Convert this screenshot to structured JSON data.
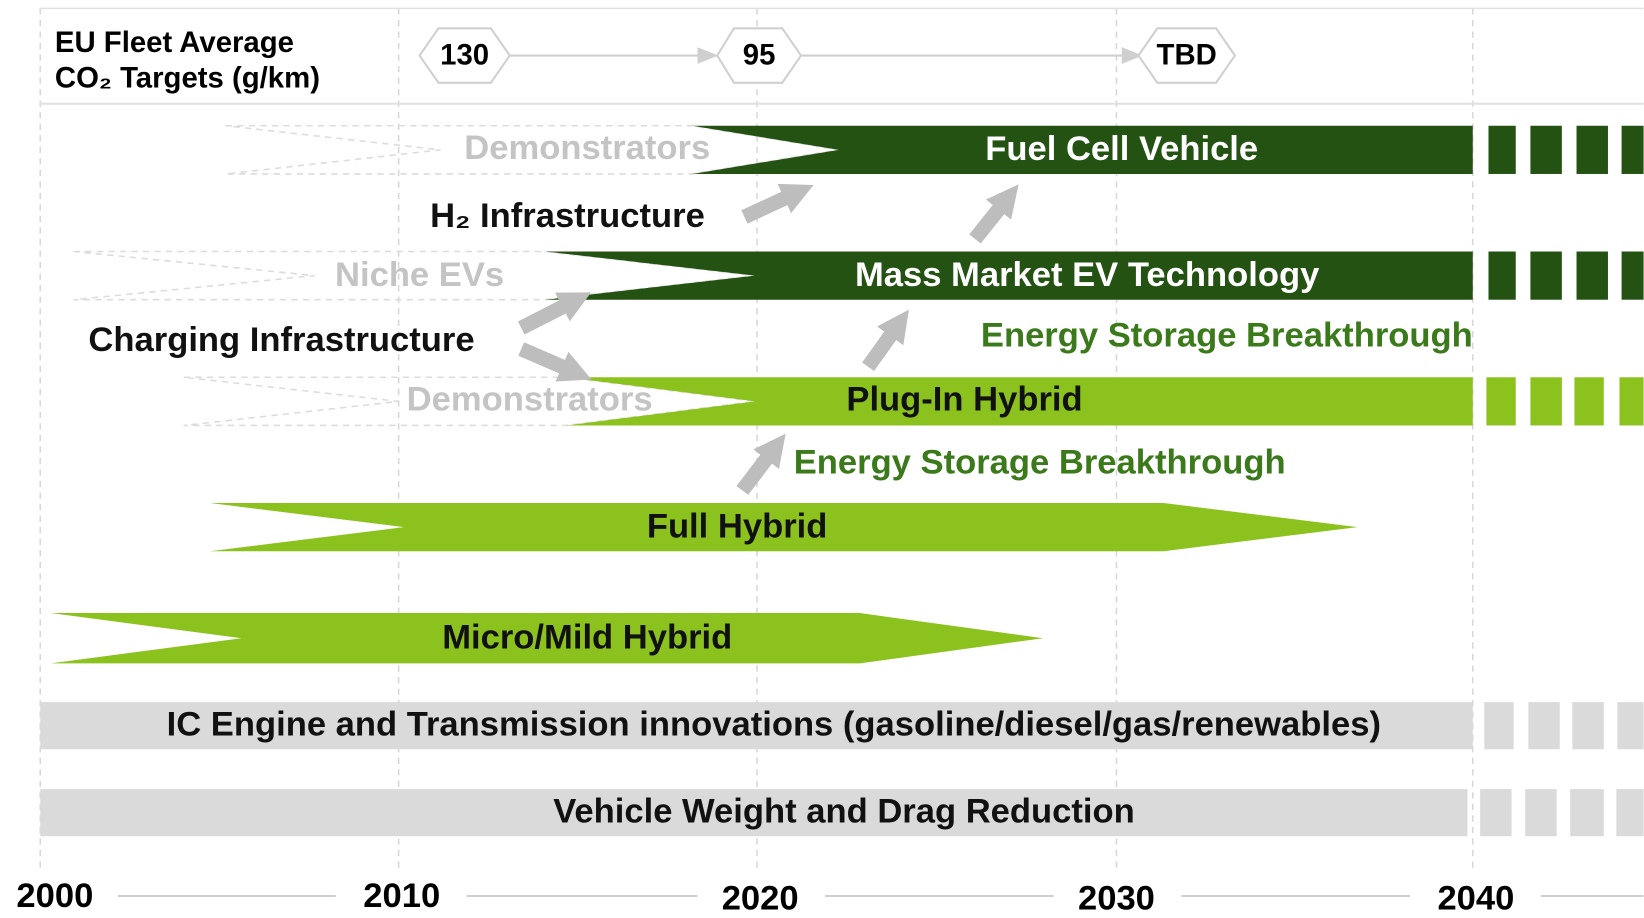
{
  "header": {
    "title_line1": "EU Fleet Average",
    "title_line2": "CO₂ Targets (g/km)",
    "targets": [
      "130",
      "95",
      "TBD"
    ]
  },
  "rows": {
    "fuel_cell": {
      "precursor": "Demonstrators",
      "label": "Fuel Cell Vehicle"
    },
    "h2_infrastructure": "H₂ Infrastructure",
    "mass_market_ev": {
      "precursor": "Niche EVs",
      "label": "Mass Market EV Technology"
    },
    "charging_infrastructure": "Charging Infrastructure",
    "energy_storage_1": "Energy Storage Breakthrough",
    "plug_in_hybrid": {
      "precursor": "Demonstrators",
      "label": "Plug-In Hybrid"
    },
    "energy_storage_2": "Energy Storage Breakthrough",
    "full_hybrid": "Full Hybrid",
    "micro_mild_hybrid": "Micro/Mild Hybrid",
    "ic_engine": "IC Engine and Transmission innovations (gasoline/diesel/gas/renewables)",
    "weight_drag": "Vehicle Weight and Drag Reduction"
  },
  "axis": {
    "years": [
      "2000",
      "2010",
      "2020",
      "2030",
      "2040"
    ]
  }
}
